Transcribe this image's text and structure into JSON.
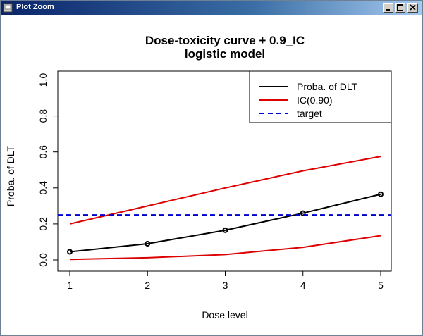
{
  "window": {
    "title": "Plot Zoom",
    "controls": [
      "minimize-icon",
      "maximize-icon",
      "close-icon"
    ],
    "titlebar_color": "#0a246a"
  },
  "chart_data": {
    "type": "line",
    "title": "Dose-toxicity curve + 0.9_IC",
    "subtitle": "logistic model",
    "xlabel": "Dose level",
    "ylabel": "Proba. of DLT",
    "xlim": [
      1,
      5
    ],
    "ylim": [
      0,
      1
    ],
    "x_ticks": [
      "1",
      "2",
      "3",
      "4",
      "5"
    ],
    "y_ticks": [
      "0.0",
      "0.2",
      "0.4",
      "0.6",
      "0.8",
      "1.0"
    ],
    "x": [
      1,
      2,
      3,
      4,
      5
    ],
    "series": [
      {
        "name": "Proba. of DLT",
        "color": "#000000",
        "style": "solid",
        "markers": true,
        "values": [
          0.045,
          0.09,
          0.165,
          0.26,
          0.365
        ]
      },
      {
        "name": "IC(0.90)",
        "color": "#dd0000",
        "style": "solid",
        "markers": false,
        "values": [
          0.2,
          0.3,
          0.4,
          0.495,
          0.575
        ]
      },
      {
        "name": "IC(0.90)",
        "color": "#dd0000",
        "style": "solid",
        "markers": false,
        "values": [
          0.003,
          0.012,
          0.03,
          0.07,
          0.135
        ]
      }
    ],
    "target": {
      "name": "target",
      "value": 0.25,
      "color": "#0000cc",
      "style": "dashed"
    },
    "legend": {
      "placement": "top-right",
      "entries": [
        {
          "label": "Proba. of DLT",
          "color": "#000000",
          "style": "solid"
        },
        {
          "label": "IC(0.90)",
          "color": "#dd0000",
          "style": "solid"
        },
        {
          "label": "target",
          "color": "#0000cc",
          "style": "dashed"
        }
      ]
    },
    "grid": false
  }
}
